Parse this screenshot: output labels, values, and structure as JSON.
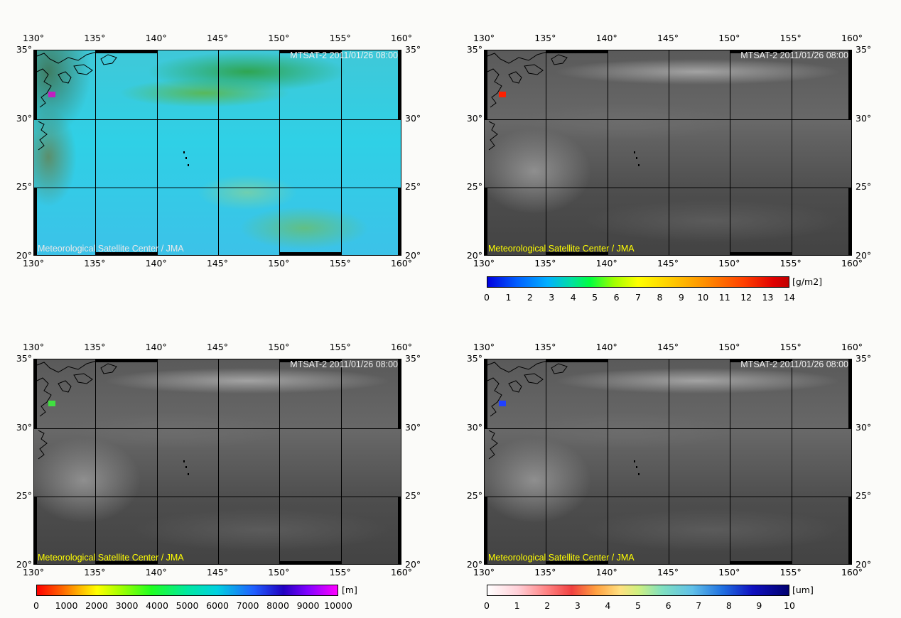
{
  "panels": [
    {
      "stamp": "MTSAT-2 2011/01/26 08:00",
      "credit": "Meteorological Satellite Center / JMA",
      "style": "color",
      "credit_color": "#e8e8e8"
    },
    {
      "stamp": "MTSAT-2 2011/01/26 08:00",
      "credit": "Meteorological Satellite Center / JMA",
      "style": "gray",
      "credit_color": "#ffff00"
    },
    {
      "stamp": "MTSAT-2 2011/01/26 08:00",
      "credit": "Meteorological Satellite Center / JMA",
      "style": "gray",
      "credit_color": "#ffff00"
    },
    {
      "stamp": "MTSAT-2 2011/01/26 08:00",
      "credit": "Meteorological Satellite Center / JMA",
      "style": "gray",
      "credit_color": "#ffff00"
    }
  ],
  "lon_labels": [
    "130°",
    "135°",
    "140°",
    "145°",
    "150°",
    "155°",
    "160°"
  ],
  "lat_labels": [
    "35°",
    "30°",
    "25°",
    "20°"
  ],
  "colorbars": [
    {
      "unit": "[g/m2]",
      "ticks": [
        "0",
        "1",
        "2",
        "3",
        "4",
        "5",
        "6",
        "7",
        "8",
        "9",
        "10",
        "11",
        "12",
        "13",
        "14"
      ],
      "gradient": "linear-gradient(90deg,#0000e0 0%,#0060ff 10%,#00b0ff 20%,#00e0a0 28%,#00ff40 34%,#a0ff00 42%,#ffff00 50%,#ffd000 60%,#ff9000 72%,#ff4000 85%,#e00000 95%,#c00000 100%)"
    },
    {
      "unit": "[m]",
      "ticks": [
        "0",
        "1000",
        "2000",
        "3000",
        "4000",
        "5000",
        "6000",
        "7000",
        "8000",
        "9000",
        "10000"
      ],
      "gradient": "linear-gradient(90deg,#ff0000 0%,#ff6000 8%,#ffc000 15%,#ffff00 20%,#a0ff00 28%,#20ff20 38%,#00e8a0 50%,#00d0e0 60%,#2060ff 72%,#2000c0 82%,#8000ff 90%,#ff00ff 100%)"
    },
    {
      "unit": "[um]",
      "ticks": [
        "0",
        "1",
        "2",
        "3",
        "4",
        "5",
        "6",
        "7",
        "8",
        "9",
        "10"
      ],
      "gradient": "linear-gradient(90deg,#ffffff 0%,#ffd0d8 10%,#ff8080 20%,#f04040 28%,#ffa040 36%,#ffe080 44%,#d0f080 50%,#80e0c0 58%,#60c0e8 68%,#2070e0 78%,#1010c0 88%,#000070 100%)"
    }
  ]
}
